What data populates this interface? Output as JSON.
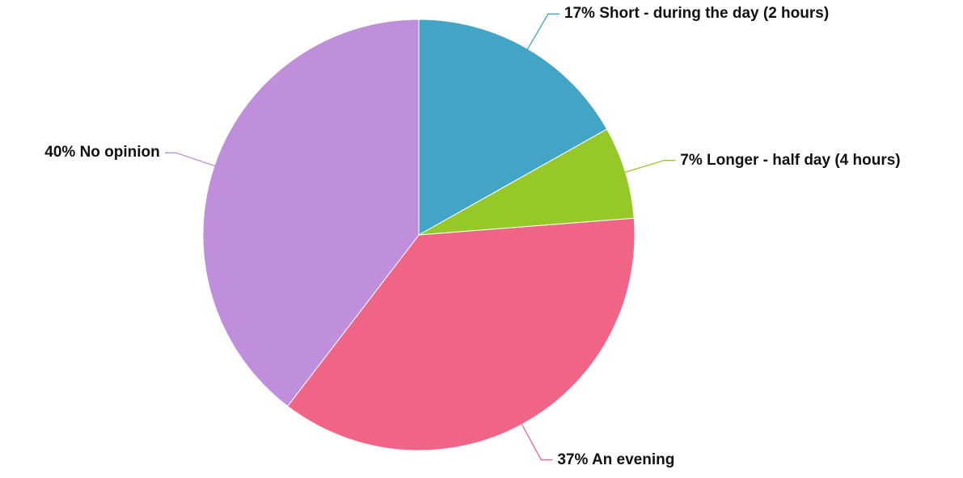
{
  "chart_data": {
    "type": "pie",
    "categories": [
      "Short - during the day (2 hours)",
      "Longer - half day (4 hours)",
      "An evening",
      "No opinion"
    ],
    "values": [
      17,
      7,
      37,
      40
    ],
    "value_labels": [
      "17%",
      "7%",
      "37%",
      "40%"
    ],
    "colors": [
      "#42a5c5",
      "#96c828",
      "#f06586",
      "#bf8fdb"
    ]
  }
}
